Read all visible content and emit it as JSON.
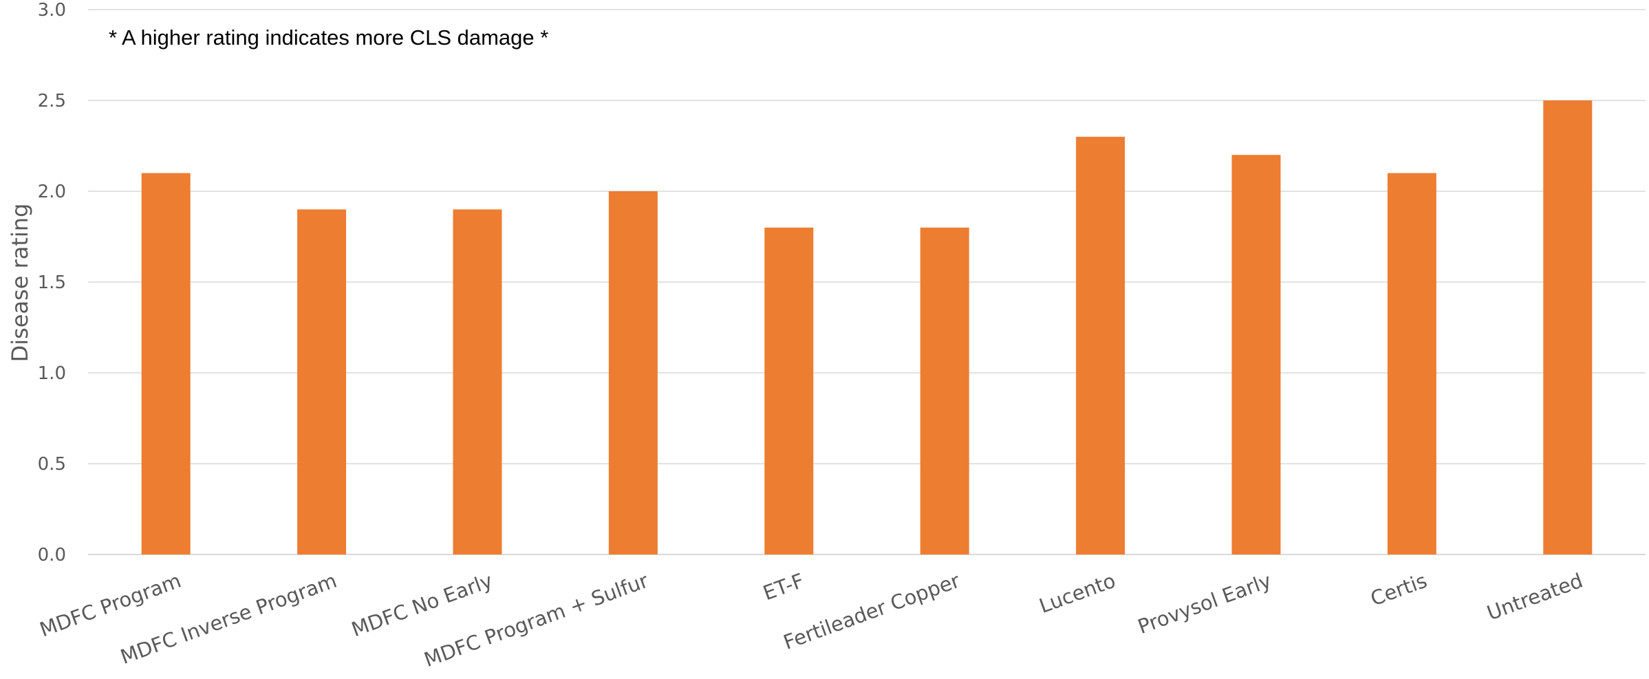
{
  "chart_data": {
    "type": "bar",
    "categories": [
      "MDFC Program",
      "MDFC Inverse Program",
      "MDFC No Early",
      "MDFC Program + Sulfur",
      "ET-F",
      "Fertileader Copper",
      "Lucento",
      "Provysol Early",
      "Certis",
      "Untreated"
    ],
    "values": [
      2.1,
      1.9,
      1.9,
      2.0,
      1.8,
      1.8,
      2.3,
      2.2,
      2.1,
      2.5
    ],
    "ylabel": "Disease rating",
    "annotation": "* A higher rating indicates more CLS damage *",
    "ylim": [
      0,
      3.0
    ],
    "yticks": [
      "0.0",
      "0.5",
      "1.0",
      "1.5",
      "2.0",
      "2.5",
      "3.0"
    ],
    "grid": true,
    "bar_color": "#ED7D31"
  }
}
